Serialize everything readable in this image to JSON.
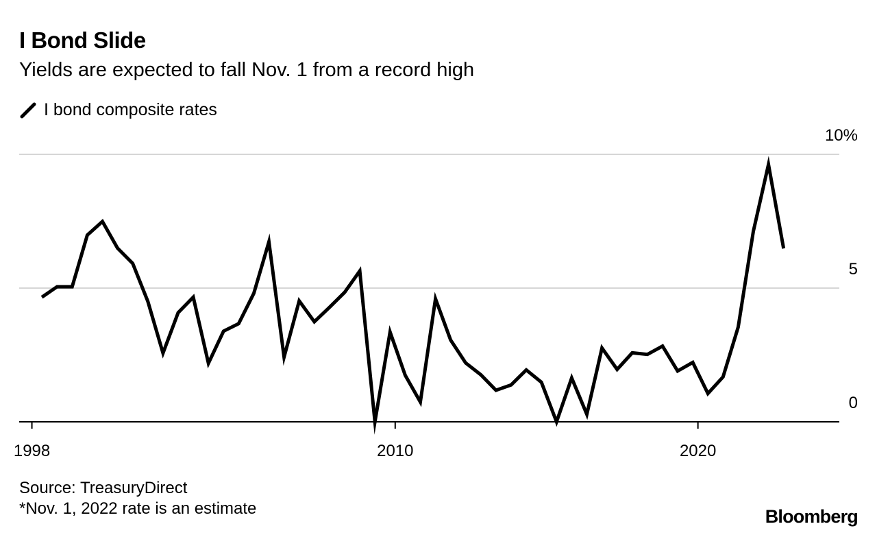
{
  "chart_data": {
    "type": "line",
    "title": "I Bond Slide",
    "subtitle": "Yields are expected to fall Nov. 1 from a record high",
    "series": [
      {
        "name": "I bond composite rates",
        "x": [
          1998.33,
          1998.83,
          1999.33,
          1999.83,
          2000.33,
          2000.83,
          2001.33,
          2001.83,
          2002.33,
          2002.83,
          2003.33,
          2003.83,
          2004.33,
          2004.83,
          2005.33,
          2005.83,
          2006.33,
          2006.83,
          2007.33,
          2007.83,
          2008.33,
          2008.83,
          2009.33,
          2009.83,
          2010.33,
          2010.83,
          2011.33,
          2011.83,
          2012.33,
          2012.83,
          2013.33,
          2013.83,
          2014.33,
          2014.83,
          2015.33,
          2015.83,
          2016.33,
          2016.83,
          2017.33,
          2017.83,
          2018.33,
          2018.83,
          2019.33,
          2019.83,
          2020.33,
          2020.83,
          2021.33,
          2021.83,
          2022.33,
          2022.83
        ],
        "values": [
          4.66,
          5.05,
          5.05,
          6.98,
          7.49,
          6.49,
          5.92,
          4.5,
          2.57,
          4.08,
          4.66,
          2.19,
          3.39,
          3.67,
          4.8,
          6.73,
          2.42,
          4.52,
          3.74,
          4.28,
          4.84,
          5.64,
          0.0,
          3.36,
          1.74,
          0.74,
          4.6,
          3.06,
          2.2,
          1.76,
          1.18,
          1.38,
          1.94,
          1.48,
          0.0,
          1.64,
          0.28,
          2.76,
          1.96,
          2.58,
          2.52,
          2.83,
          1.9,
          2.22,
          1.06,
          1.68,
          3.54,
          7.12,
          9.62,
          6.48
        ]
      }
    ],
    "xticks": [
      1998,
      2010,
      2020
    ],
    "xtick_labels": [
      "1998",
      "2010",
      "2020"
    ],
    "yticks": [
      0,
      5,
      10
    ],
    "ytick_labels": [
      "0",
      "5",
      "10%"
    ],
    "ylim": [
      0,
      10
    ],
    "xlim": [
      1997.58,
      2024.67
    ],
    "grid": true,
    "legend": "top-left",
    "color": "#000000"
  },
  "legend_label": "I bond composite rates",
  "source": "Source: TreasuryDirect",
  "note": "*Nov. 1, 2022 rate is an estimate",
  "brand": "Bloomberg"
}
